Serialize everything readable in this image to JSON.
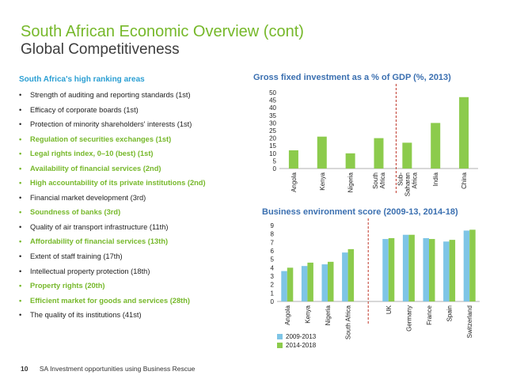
{
  "header": {
    "title": "South African Economic Overview (cont)",
    "subtitle": "Global Competitiveness"
  },
  "left": {
    "heading": "South Africa's high ranking areas",
    "items": [
      {
        "text": "Strength of auditing and reporting standards (1st)",
        "highlight": false
      },
      {
        "text": "Efficacy of corporate boards (1st)",
        "highlight": false
      },
      {
        "text": "Protection of minority shareholders' interests (1st)",
        "highlight": false
      },
      {
        "text": "Regulation of securities exchanges (1st)",
        "highlight": true
      },
      {
        "text": "Legal rights index, 0–10 (best) (1st)",
        "highlight": true
      },
      {
        "text": "Availability of financial services (2nd)",
        "highlight": true
      },
      {
        "text": "High accountability of its private institutions (2nd)",
        "highlight": true
      },
      {
        "text": "Financial market development (3rd)",
        "highlight": false
      },
      {
        "text": "Soundness of banks (3rd)",
        "highlight": true
      },
      {
        "text": "Quality of air transport infrastructure (11th)",
        "highlight": false
      },
      {
        "text": "Affordability of financial services (13th)",
        "highlight": true
      },
      {
        "text": "Extent of staff training (17th)",
        "highlight": false
      },
      {
        "text": "Intellectual property protection (18th)",
        "highlight": false
      },
      {
        "text": "Property rights (20th)",
        "highlight": true
      },
      {
        "text": "Efficient market for goods and services (28th)",
        "highlight": true
      },
      {
        "text": "The quality of its institutions (41st)",
        "highlight": false
      }
    ]
  },
  "footer": {
    "page_number": "10",
    "text": "SA Investment opportunities using Business Rescue"
  },
  "colors": {
    "green": "#76b82a",
    "blue_heading": "#2b9fd3",
    "chart_title": "#3a6fb0",
    "series_2009": "#7ec5e6",
    "series_2014": "#8ccb4c",
    "divider": "#c0392b",
    "bar_green": "#8ccb4c"
  },
  "chart_data": [
    {
      "type": "bar",
      "title": "Gross fixed investment as a % of GDP (%, 2013)",
      "categories": [
        "Angola",
        "Kenya",
        "Nigeria",
        "South Africa",
        "Sub-Saharan Africa",
        "India",
        "China"
      ],
      "category_lines": [
        [
          "Angola"
        ],
        [
          "Kenya"
        ],
        [
          "Nigeria"
        ],
        [
          "South",
          "Africa"
        ],
        [
          "Sub-",
          "Saharan",
          "Africa"
        ],
        [
          "India"
        ],
        [
          "China"
        ]
      ],
      "values": [
        12,
        21,
        10,
        20,
        17,
        30,
        47
      ],
      "ylim": [
        0,
        50
      ],
      "yticks": [
        0,
        5,
        10,
        15,
        20,
        25,
        30,
        35,
        40,
        45,
        50
      ],
      "gridlines": false,
      "divider_after_index": 3
    },
    {
      "type": "bar",
      "title": "Business environment score (2009-13, 2014-18)",
      "categories": [
        "Angola",
        "Kenya",
        "Nigeria",
        "South Africa",
        "UK",
        "Germany",
        "France",
        "Spain",
        "Switzerland"
      ],
      "series": [
        {
          "name": "2009-2013",
          "values": [
            3.6,
            4.2,
            4.4,
            5.8,
            7.4,
            7.9,
            7.5,
            7.1,
            8.4
          ]
        },
        {
          "name": "2014-2018",
          "values": [
            4.0,
            4.6,
            4.7,
            6.2,
            7.5,
            7.9,
            7.4,
            7.3,
            8.5
          ]
        }
      ],
      "ylim": [
        0,
        9
      ],
      "yticks": [
        0,
        1,
        2,
        3,
        4,
        5,
        6,
        7,
        8,
        9
      ],
      "gridlines": false,
      "divider_after_index": 3,
      "legend": "bottom-left"
    }
  ]
}
